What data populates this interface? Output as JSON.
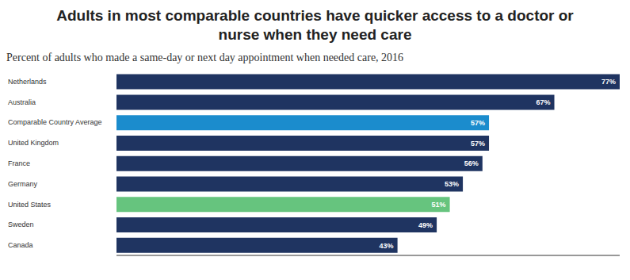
{
  "chart_data": {
    "type": "bar",
    "title": "Adults in most comparable countries have quicker access to a doctor or nurse when they need care",
    "subtitle": "Percent of adults who made a same-day or next day appointment when needed care, 2016",
    "orientation": "horizontal",
    "categories": [
      "Netherlands",
      "Australia",
      "Comparable Country Average",
      "United Kingdom",
      "France",
      "Germany",
      "United States",
      "Sweden",
      "Canada"
    ],
    "values": [
      77,
      67,
      57,
      57,
      56,
      53,
      51,
      49,
      43
    ],
    "value_labels": [
      "77%",
      "67%",
      "57%",
      "57%",
      "56%",
      "53%",
      "51%",
      "49%",
      "43%"
    ],
    "colors": [
      "#1f3461",
      "#1f3461",
      "#1b8ccd",
      "#1f3461",
      "#1f3461",
      "#1f3461",
      "#66c47e",
      "#1f3461",
      "#1f3461"
    ],
    "xlim": [
      0,
      77
    ],
    "grid": false,
    "data_labels": true,
    "tick_labels": false
  }
}
